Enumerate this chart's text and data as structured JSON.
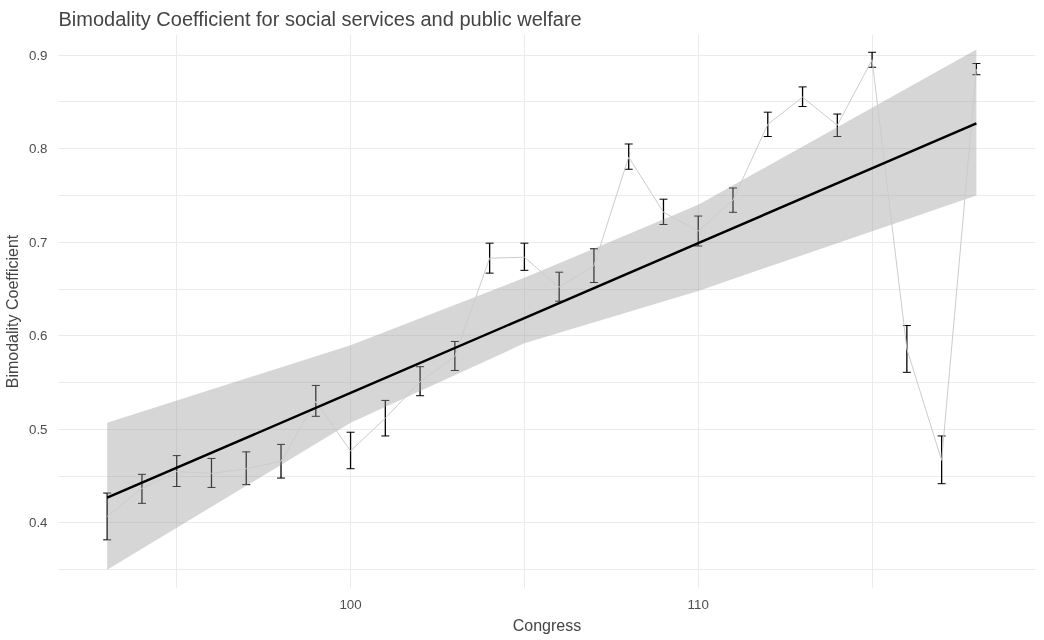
{
  "chart_data": {
    "type": "line",
    "title": "Bimodality Coefficient for social services and public welfare",
    "xlabel": "Congress",
    "ylabel": "Bimodality Coefficient",
    "xlim": [
      91.6,
      119.7
    ],
    "ylim": [
      0.33,
      0.922
    ],
    "xticks": [
      {
        "value": 95,
        "label": null
      },
      100,
      {
        "value": 105,
        "label": null
      },
      110,
      {
        "value": 115,
        "label": null
      }
    ],
    "yticks": [
      {
        "value": 0.35,
        "label": null
      },
      0.4,
      {
        "value": 0.45,
        "label": null
      },
      0.5,
      {
        "value": 0.55,
        "label": null
      },
      0.6,
      {
        "value": 0.65,
        "label": null
      },
      0.7,
      {
        "value": 0.75,
        "label": null
      },
      0.8,
      {
        "value": 0.85,
        "label": null
      },
      0.9
    ],
    "grid": true,
    "marker": "none",
    "line_style": "solid",
    "series": [
      {
        "color": "#cccccc",
        "x": [
          93,
          94,
          95,
          96,
          97,
          98,
          99,
          100,
          101,
          102,
          103,
          104,
          105,
          106,
          107,
          108,
          109,
          110,
          111,
          112,
          113,
          114,
          115,
          116,
          117,
          118
        ],
        "values": [
          0.407,
          0.437,
          0.455,
          0.453,
          0.458,
          0.466,
          0.53,
          0.477,
          0.512,
          0.551,
          0.578,
          0.683,
          0.684,
          0.652,
          0.675,
          0.791,
          0.732,
          0.712,
          0.745,
          0.826,
          0.855,
          0.825,
          0.895,
          0.586,
          0.467,
          0.885
        ],
        "errors": [
          [
            0.382,
            0.432
          ],
          [
            0.421,
            0.452
          ],
          [
            0.439,
            0.472
          ],
          [
            0.438,
            0.469
          ],
          [
            0.441,
            0.476
          ],
          [
            0.448,
            0.484
          ],
          [
            0.514,
            0.547
          ],
          [
            0.458,
            0.497
          ],
          [
            0.493,
            0.531
          ],
          [
            0.536,
            0.567
          ],
          [
            0.563,
            0.594
          ],
          [
            0.667,
            0.699
          ],
          [
            0.67,
            0.699
          ],
          [
            0.637,
            0.668
          ],
          [
            0.657,
            0.693
          ],
          [
            0.778,
            0.805
          ],
          [
            0.719,
            0.746
          ],
          [
            0.696,
            0.728
          ],
          [
            0.732,
            0.758
          ],
          [
            0.813,
            0.839
          ],
          [
            0.845,
            0.866
          ],
          [
            0.813,
            0.837
          ],
          [
            0.887,
            0.903
          ],
          [
            0.561,
            0.611
          ],
          [
            0.442,
            0.493
          ],
          [
            0.879,
            0.891
          ]
        ]
      },
      {
        "color": "#000000",
        "x": [
          93,
          100,
          105,
          110,
          118
        ],
        "values": [
          0.427,
          0.539,
          0.619,
          0.699,
          0.827
        ],
        "lower": [
          0.35,
          0.507,
          0.592,
          0.648,
          0.75
        ],
        "upper": [
          0.507,
          0.59,
          0.662,
          0.74,
          0.906
        ]
      }
    ]
  }
}
